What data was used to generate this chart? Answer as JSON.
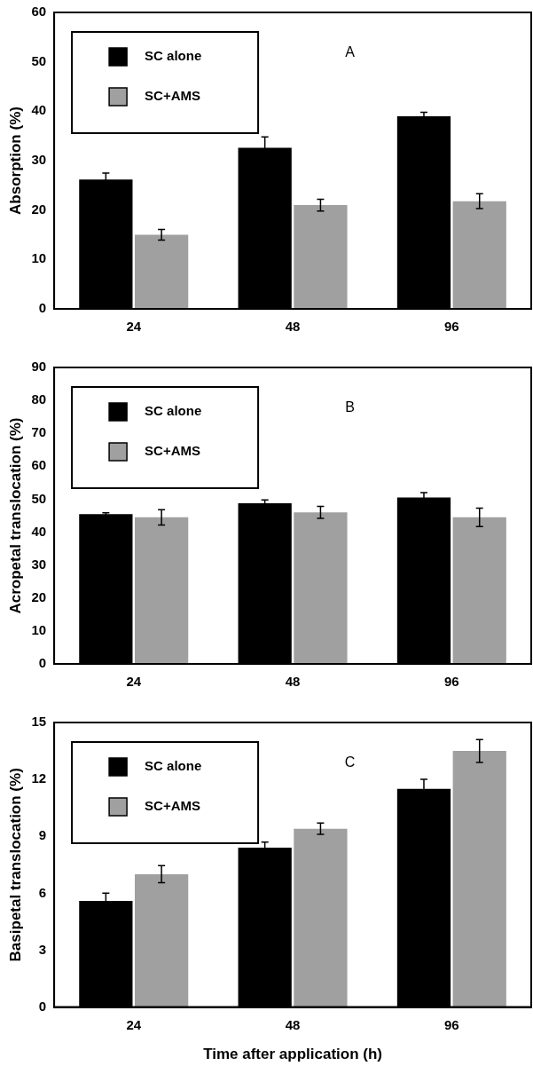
{
  "chart_data": [
    {
      "type": "bar",
      "ylabel": "Absorption (%)",
      "categories": [
        "24",
        "48",
        "96"
      ],
      "ylim": [
        0,
        60
      ],
      "yticks": [
        0,
        10,
        20,
        30,
        40,
        50,
        60
      ],
      "grid": false,
      "legend": "top left",
      "annotations": [
        "A"
      ],
      "series": [
        {
          "name": "SC alone",
          "color": "#000000",
          "values": [
            26.2,
            32.6,
            39.0
          ],
          "errors": [
            1.3,
            2.2,
            0.8
          ]
        },
        {
          "name": "SC+AMS",
          "color": "#a0a0a0",
          "values": [
            15.0,
            21.0,
            21.8
          ],
          "errors": [
            1.1,
            1.2,
            1.5
          ]
        }
      ]
    },
    {
      "type": "bar",
      "ylabel": "Acropetal translocation (%)",
      "categories": [
        "24",
        "48",
        "96"
      ],
      "ylim": [
        0,
        90
      ],
      "yticks": [
        0,
        10,
        20,
        30,
        40,
        50,
        60,
        70,
        80,
        90
      ],
      "grid": false,
      "legend": "top left",
      "annotations": [
        "B"
      ],
      "series": [
        {
          "name": "SC alone",
          "color": "#000000",
          "values": [
            45.5,
            48.8,
            50.5
          ],
          "errors": [
            0.4,
            1.0,
            1.5
          ]
        },
        {
          "name": "SC+AMS",
          "color": "#a0a0a0",
          "values": [
            44.5,
            46.0,
            44.5
          ],
          "errors": [
            2.3,
            1.8,
            2.8
          ]
        }
      ]
    },
    {
      "type": "bar",
      "xlabel": "Time after application (h)",
      "ylabel": "Basipetal translocation (%)",
      "categories": [
        "24",
        "48",
        "96"
      ],
      "ylim": [
        0,
        15
      ],
      "yticks": [
        0,
        3,
        6,
        9,
        12,
        15
      ],
      "grid": false,
      "legend": "top left",
      "annotations": [
        "C"
      ],
      "series": [
        {
          "name": "SC alone",
          "color": "#000000",
          "values": [
            5.6,
            8.4,
            11.5
          ],
          "errors": [
            0.4,
            0.3,
            0.5
          ]
        },
        {
          "name": "SC+AMS",
          "color": "#a0a0a0",
          "values": [
            7.0,
            9.4,
            13.5
          ],
          "errors": [
            0.45,
            0.3,
            0.6
          ]
        }
      ]
    }
  ]
}
